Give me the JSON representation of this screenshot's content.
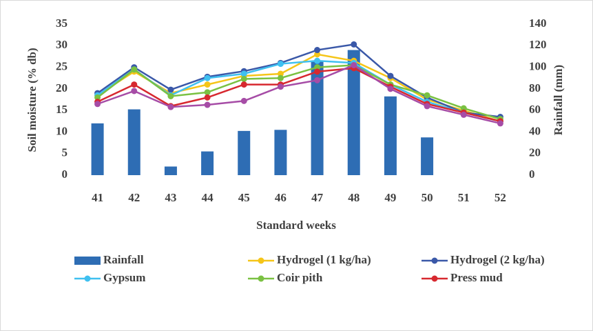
{
  "chart_data": {
    "type": "combo",
    "xlabel": "Standard weeks",
    "ylabel": "Soil moisture (% db)",
    "y2label": "Rainfall (mm)",
    "categories": [
      "41",
      "42",
      "43",
      "44",
      "45",
      "46",
      "47",
      "48",
      "49",
      "50",
      "51",
      "52"
    ],
    "ylim": [
      0,
      35
    ],
    "yticks": [
      0,
      5,
      10,
      15,
      20,
      25,
      30,
      35
    ],
    "y2lim": [
      0,
      140
    ],
    "y2ticks": [
      0,
      20,
      40,
      60,
      80,
      100,
      120,
      140
    ],
    "series": [
      {
        "name": "Rainfall",
        "type": "bar",
        "axis": "y2",
        "color": "#2e6db4",
        "values": [
          48,
          61,
          8,
          22,
          41,
          42,
          106,
          116,
          73,
          35,
          0,
          0
        ]
      },
      {
        "name": "Hydrogel (1 kg/ha)",
        "type": "line",
        "color": "#f5c518",
        "values": [
          18.5,
          24,
          19,
          21,
          23,
          23.5,
          28,
          26.5,
          22.5,
          17.5,
          15,
          12.5
        ]
      },
      {
        "name": "Hydrogel (2 kg/ha)",
        "type": "line",
        "color": "#3a58a8",
        "values": [
          19,
          25,
          19.8,
          22.8,
          24.1,
          26,
          29,
          30.3,
          23,
          18,
          14.5,
          13.5
        ]
      },
      {
        "name": "Gypsum",
        "type": "line",
        "color": "#3fc0f0",
        "values": [
          18.5,
          24.5,
          18.5,
          22.5,
          23.5,
          25.8,
          26.5,
          26,
          21,
          17,
          14.5,
          12.5
        ]
      },
      {
        "name": "Coir pith",
        "type": "line",
        "color": "#7ac142",
        "values": [
          18,
          24.5,
          18.3,
          19.2,
          22.3,
          22.5,
          25,
          25.5,
          21,
          18.5,
          15.5,
          13
        ]
      },
      {
        "name": "Press mud",
        "type": "line",
        "color": "#d7282f",
        "values": [
          17,
          21,
          16,
          18,
          21,
          21,
          24,
          24.8,
          20.5,
          16.5,
          14.5,
          12.5
        ]
      },
      {
        "name": null,
        "type": "line",
        "color": "#a64ca6",
        "values": [
          16.5,
          19.5,
          15.8,
          16.3,
          17.2,
          20.5,
          22,
          25.5,
          20,
          16,
          14,
          12
        ]
      }
    ]
  }
}
